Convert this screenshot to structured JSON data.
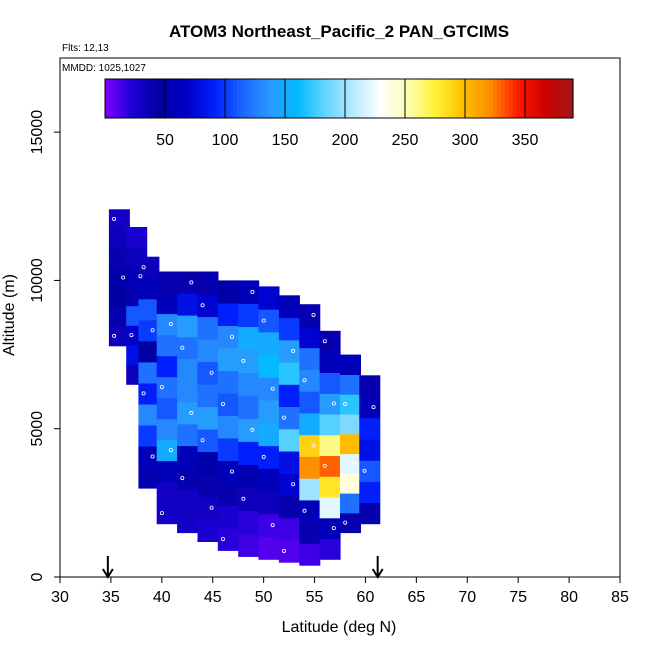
{
  "chart_data": {
    "type": "heatmap",
    "title": "ATOM3 Northeast_Pacific_2 PAN_GTCIMS",
    "flights_label": "Flts: 12,13",
    "dates_label": "MMDD: 1025,1027",
    "xlabel": "Latitude (deg N)",
    "ylabel": "Altitude (m)",
    "xlim": [
      30,
      85
    ],
    "ylim": [
      0,
      17500
    ],
    "x_ticks": [
      "30",
      "35",
      "40",
      "45",
      "50",
      "55",
      "60",
      "65",
      "70",
      "75",
      "80",
      "85"
    ],
    "y_ticks": [
      "0",
      "5000",
      "10000",
      "15000"
    ],
    "colorbar": {
      "range": [
        0,
        390
      ],
      "tick_labels": [
        "50",
        "100",
        "150",
        "200",
        "250",
        "300",
        "350"
      ],
      "colors": [
        "#7f00ff",
        "#1a00d6",
        "#0000a0",
        "#0000cc",
        "#0022ff",
        "#1a66ff",
        "#2a99ff",
        "#00bbff",
        "#66d4ff",
        "#b5e9ff",
        "#ffffff",
        "#ffffb0",
        "#fff033",
        "#ffc000",
        "#ff8c00",
        "#ff1a00",
        "#cc0000",
        "#a01818"
      ]
    },
    "flight_markers_latitude": [
      34.7,
      61.2
    ],
    "profiles": [
      {
        "lat": 35.8,
        "alt_min": 7800,
        "alt_max": 12400,
        "values": [
          35,
          40,
          45,
          50,
          40,
          35,
          30
        ]
      },
      {
        "lat": 37.5,
        "alt_min": 6500,
        "alt_max": 11800,
        "values": [
          35,
          80,
          70,
          110,
          40,
          60,
          35,
          25
        ]
      },
      {
        "lat": 38.7,
        "alt_min": 3000,
        "alt_max": 10800,
        "values": [
          40,
          60,
          100,
          130,
          90,
          120,
          45,
          100,
          110,
          60,
          35
        ]
      },
      {
        "lat": 40.5,
        "alt_min": 1800,
        "alt_max": 10300,
        "values": [
          30,
          30,
          60,
          150,
          130,
          110,
          120,
          90,
          120,
          130,
          60,
          40
        ]
      },
      {
        "lat": 42.5,
        "alt_min": 1500,
        "alt_max": 10300,
        "values": [
          30,
          30,
          40,
          60,
          120,
          140,
          130,
          130,
          120,
          140,
          80,
          40
        ]
      },
      {
        "lat": 44.5,
        "alt_min": 1200,
        "alt_max": 10300,
        "values": [
          25,
          30,
          40,
          50,
          110,
          140,
          120,
          110,
          130,
          120,
          70,
          40
        ]
      },
      {
        "lat": 46.5,
        "alt_min": 900,
        "alt_max": 10000,
        "values": [
          20,
          25,
          40,
          60,
          100,
          130,
          110,
          120,
          140,
          130,
          90,
          50
        ]
      },
      {
        "lat": 48.5,
        "alt_min": 700,
        "alt_max": 10000,
        "values": [
          15,
          20,
          35,
          55,
          90,
          140,
          120,
          130,
          140,
          150,
          100,
          60
        ]
      },
      {
        "lat": 50.5,
        "alt_min": 600,
        "alt_max": 9800,
        "values": [
          10,
          15,
          35,
          60,
          90,
          150,
          140,
          130,
          160,
          150,
          110,
          70
        ]
      },
      {
        "lat": 52.5,
        "alt_min": 500,
        "alt_max": 9500,
        "values": [
          10,
          15,
          40,
          70,
          80,
          180,
          120,
          90,
          170,
          140,
          100,
          60
        ]
      },
      {
        "lat": 54.5,
        "alt_min": 400,
        "alt_max": 9200,
        "values": [
          15,
          40,
          60,
          200,
          320,
          290,
          150,
          110,
          130,
          120,
          70,
          40
        ]
      },
      {
        "lat": 56.5,
        "alt_min": 600,
        "alt_max": 8300,
        "values": [
          20,
          60,
          220,
          280,
          330,
          260,
          180,
          140,
          110,
          60,
          40
        ]
      },
      {
        "lat": 58.5,
        "alt_min": 1500,
        "alt_max": 7500,
        "values": [
          40,
          120,
          240,
          220,
          300,
          190,
          170,
          120,
          60
        ]
      },
      {
        "lat": 60.4,
        "alt_min": 1800,
        "alt_max": 6800,
        "values": [
          40,
          90,
          110,
          80,
          90,
          60,
          40
        ]
      }
    ]
  }
}
